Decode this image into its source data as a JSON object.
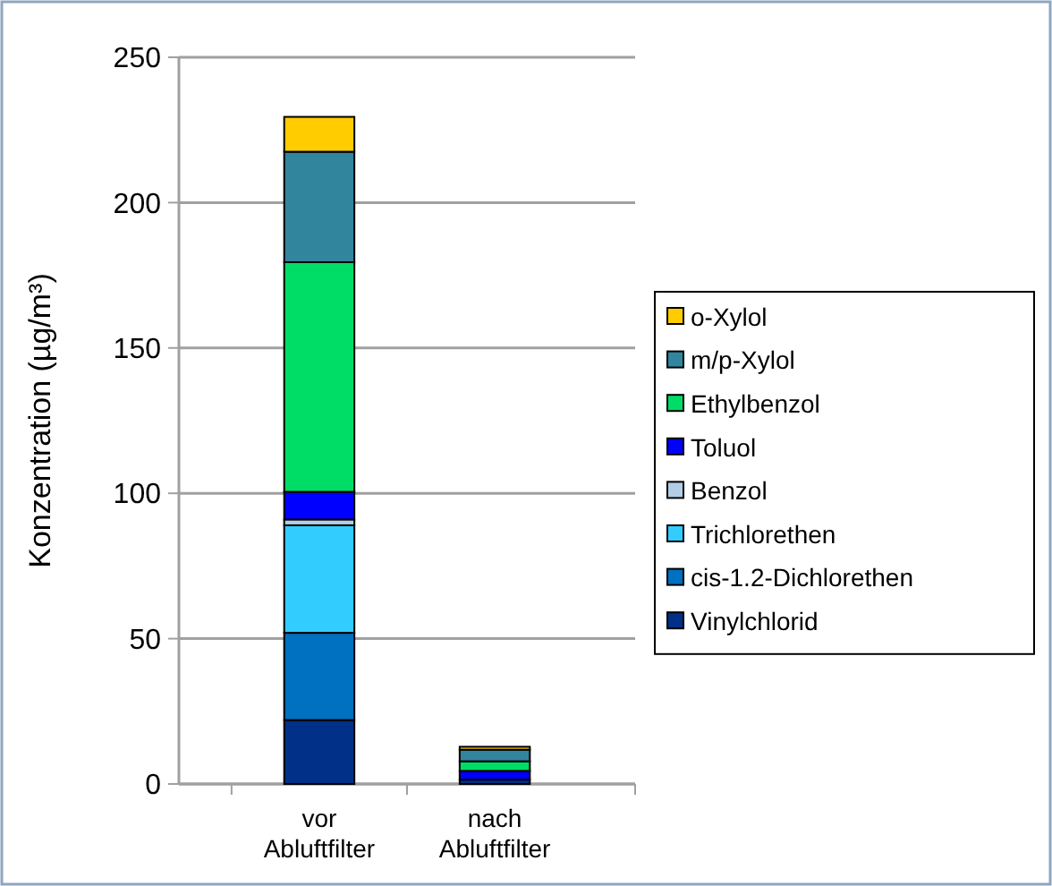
{
  "chart_data": {
    "type": "bar",
    "stacked": true,
    "ylabel": "Konzentration (µg/m³)",
    "categories": [
      "vor Abluftfilter",
      "nach Abluftfilter"
    ],
    "series": [
      {
        "name": "Vinylchlorid",
        "color": "#003087",
        "values": [
          22,
          1.5
        ]
      },
      {
        "name": "cis-1.2-Dichlorethen",
        "color": "#0070c0",
        "values": [
          30,
          null
        ]
      },
      {
        "name": "Trichlorethen",
        "color": "#33ccff",
        "values": [
          37,
          null
        ]
      },
      {
        "name": "Benzol",
        "color": "#b3cde6",
        "values": [
          2,
          null
        ]
      },
      {
        "name": "Toluol",
        "color": "#0000ff",
        "values": [
          9.5,
          3
        ]
      },
      {
        "name": "Ethylbenzol",
        "color": "#00dd66",
        "values": [
          79,
          3.3
        ]
      },
      {
        "name": "m/p-Xylol",
        "color": "#31859c",
        "values": [
          38,
          4
        ]
      },
      {
        "name": "o-Xylol",
        "color": "#ffcc00",
        "values": [
          12,
          1
        ]
      }
    ],
    "ylim": [
      0,
      250
    ],
    "yticks": [
      0,
      50,
      100,
      150,
      200,
      250
    ],
    "grid": "y",
    "legend": "right"
  }
}
